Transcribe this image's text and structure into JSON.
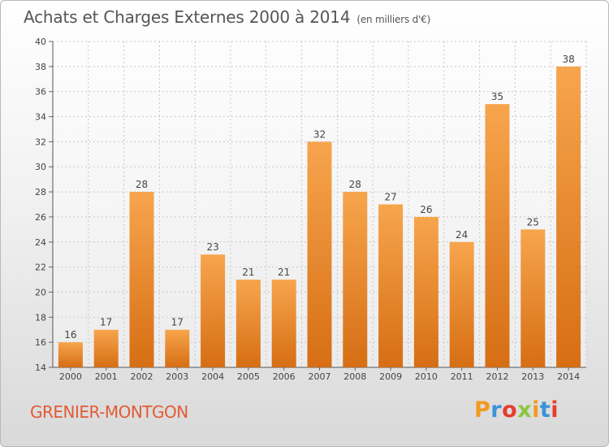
{
  "header": {
    "title": "Achats et Charges Externes 2000 à 2014",
    "unit": "(en milliers d'€)"
  },
  "footer": {
    "commune": "GRENIER-MONTGON",
    "logo_text": "Proxiti"
  },
  "colors": {
    "bar_light": "#f7a54d",
    "bar_dark": "#d66e14",
    "commune_text": "#e25b35",
    "logo_letters": [
      "#f29a1f",
      "#3c92d8",
      "#e63e2c",
      "#8cc63f",
      "#f29a1f",
      "#3c92d8",
      "#e63e2c"
    ]
  },
  "chart_data": {
    "type": "bar",
    "title": "Achats et Charges Externes 2000 à 2014",
    "subtitle": "(en milliers d'€)",
    "categories": [
      "2000",
      "2001",
      "2002",
      "2003",
      "2004",
      "2005",
      "2006",
      "2007",
      "2008",
      "2009",
      "2010",
      "2011",
      "2012",
      "2013",
      "2014"
    ],
    "values": [
      16,
      17,
      28,
      17,
      23,
      21,
      21,
      32,
      28,
      27,
      26,
      24,
      35,
      25,
      38
    ],
    "ylim": [
      14,
      40
    ],
    "yticks": [
      14,
      16,
      18,
      20,
      22,
      24,
      26,
      28,
      30,
      32,
      34,
      36,
      38,
      40
    ],
    "grid": true,
    "data_labels": true
  }
}
